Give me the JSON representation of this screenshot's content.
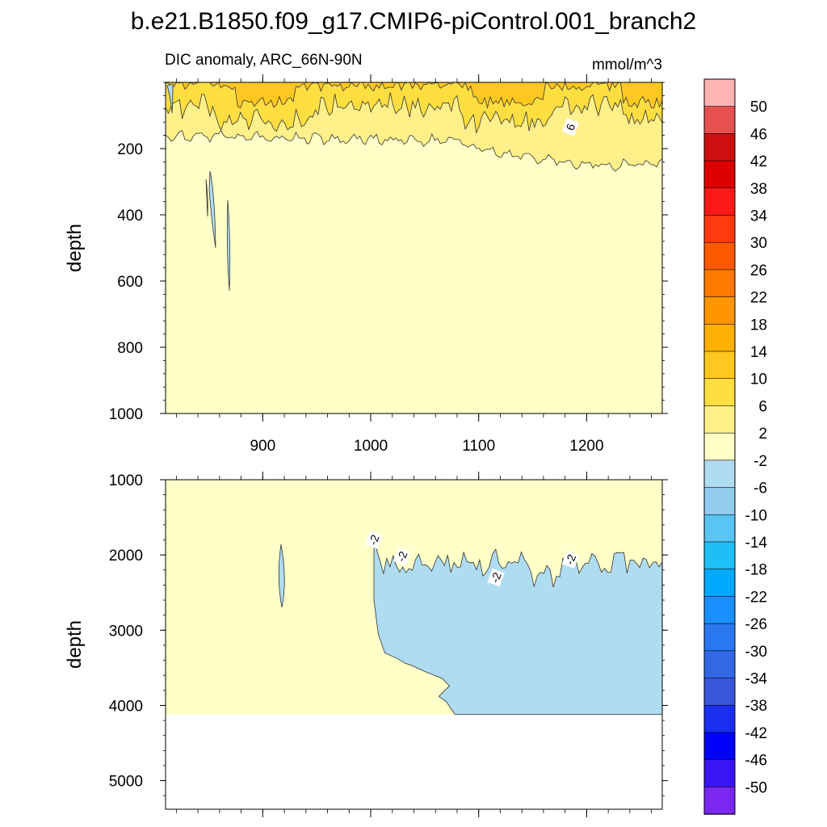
{
  "chart_data": {
    "type": "contour",
    "title": "b.e21.B1850.f09_g17.CMIP6-piControl.001_branch2",
    "variable_label": "DIC anomaly, ARC_66N-90N",
    "units": "mmol/m^3",
    "xlim": [
      810,
      1270
    ],
    "x_ticks": [
      900,
      1000,
      1100,
      1200
    ],
    "x_tick_labels": [
      "900",
      "1000",
      "1100",
      "1200"
    ],
    "panels": [
      {
        "name": "upper",
        "ylabel": "depth",
        "ylim": [
          0,
          1000
        ],
        "y_ticks": [
          200,
          400,
          600,
          800,
          1000
        ],
        "y_tick_labels": [
          "200",
          "400",
          "600",
          "800",
          "1000"
        ],
        "contour_labels": [
          {
            "text": "6",
            "x": 1185,
            "y": 135
          }
        ]
      },
      {
        "name": "lower",
        "ylabel": "depth",
        "ylim": [
          1000,
          5380
        ],
        "y_ticks": [
          1000,
          2000,
          3000,
          4000,
          5000
        ],
        "y_tick_labels": [
          "1000",
          "2000",
          "3000",
          "4000",
          "5000"
        ],
        "ocean_bottom": 4120,
        "contour_labels": [
          {
            "text": "-2",
            "x": 1003,
            "y": 1800
          },
          {
            "text": "-2",
            "x": 1029,
            "y": 2020
          },
          {
            "text": "-2",
            "x": 1116,
            "y": 2300
          },
          {
            "text": "-2",
            "x": 1185,
            "y": 2060
          }
        ]
      }
    ],
    "colorbar": {
      "labels": [
        "50",
        "46",
        "42",
        "38",
        "34",
        "30",
        "26",
        "22",
        "18",
        "14",
        "10",
        "6",
        "2",
        "-2",
        "-6",
        "-10",
        "-14",
        "-18",
        "-22",
        "-26",
        "-30",
        "-34",
        "-38",
        "-42",
        "-46",
        "-50"
      ],
      "colors": [
        "#ffb3b3",
        "#e65050",
        "#cc1010",
        "#dd0000",
        "#ff1a1a",
        "#ff3a10",
        "#ff5a00",
        "#ff7a00",
        "#ff9600",
        "#ffb000",
        "#ffc820",
        "#ffde40",
        "#fff08a",
        "#ffffc8",
        "#b0dcf2",
        "#92cdef",
        "#5ac4f2",
        "#1ebff5",
        "#00aaff",
        "#1a90ff",
        "#2a78f0",
        "#3268e6",
        "#3858dc",
        "#1a2ef0",
        "#0000ff",
        "#3a14f5",
        "#7a28f0"
      ]
    },
    "colors": {
      "minus2_to_2": "#ffffc8",
      "2_to_6": "#fff08a",
      "6_to_10": "#ffde40",
      "10_to_14": "#ffc820",
      "minus6_to_minus2": "#b0dcf2"
    }
  }
}
